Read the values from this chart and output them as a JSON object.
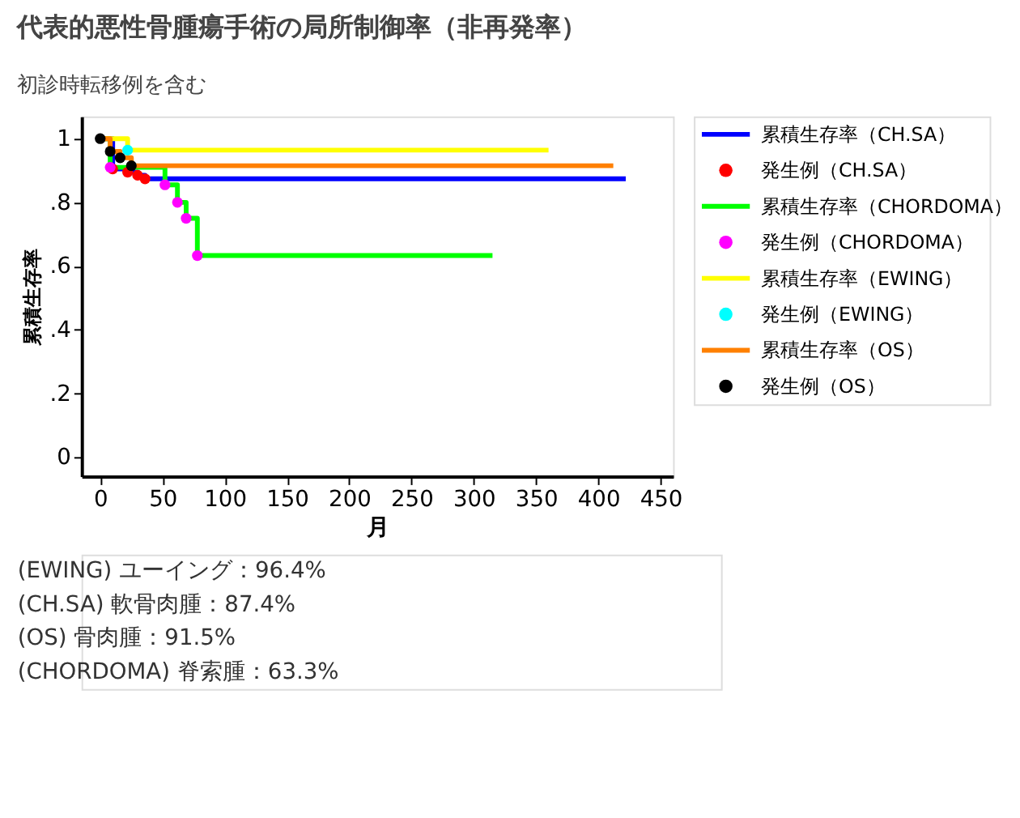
{
  "chart_data": {
    "type": "step",
    "title": "代表的悪性骨腫瘍手術の局所制御率（非再発率）",
    "subtitle": "初診時転移例を含む",
    "xlabel": "月",
    "ylabel": "累積生存率",
    "xlim": [
      -15,
      460
    ],
    "xticks": [
      0,
      50,
      100,
      150,
      200,
      250,
      300,
      350,
      400,
      450
    ],
    "ylim": [
      -0.06,
      1.07
    ],
    "yticks": [
      {
        "value": 0,
        "label": "0"
      },
      {
        "value": 0.2,
        "label": ".2"
      },
      {
        "value": 0.4,
        "label": ".4"
      },
      {
        "value": 0.6,
        "label": ".6"
      },
      {
        "value": 0.8,
        "label": ".8"
      },
      {
        "value": 1,
        "label": "1"
      }
    ],
    "grid": false,
    "legend": "right",
    "line_style": "solid",
    "series": [
      {
        "name": "累積生存率（CH.SA）",
        "color": "#0000ff",
        "x": [
          0,
          10,
          22,
          30,
          36,
          422
        ],
        "values": [
          1,
          0.905,
          0.895,
          0.885,
          0.874,
          0.874
        ]
      },
      {
        "type": "scatter",
        "marker": "circle",
        "name": "発生例（CH.SA）",
        "color": "#ff0000",
        "x": [
          10,
          22,
          30,
          36
        ],
        "values": [
          0.905,
          0.895,
          0.885,
          0.874
        ]
      },
      {
        "name": "累積生存率（CHORDOMA）",
        "color": "#00ff00",
        "x": [
          0,
          8,
          52,
          62,
          69,
          78,
          315
        ],
        "values": [
          1,
          0.91,
          0.855,
          0.8,
          0.75,
          0.633,
          0.633
        ]
      },
      {
        "type": "scatter",
        "marker": "circle",
        "name": "発生例（CHORDOMA）",
        "color": "#ff00ff",
        "x": [
          8,
          52,
          62,
          69,
          78
        ],
        "values": [
          0.91,
          0.855,
          0.8,
          0.75,
          0.633
        ]
      },
      {
        "name": "累積生存率（EWING）",
        "color": "#ffff00",
        "x": [
          0,
          22,
          360
        ],
        "values": [
          1,
          0.964,
          0.964
        ]
      },
      {
        "type": "scatter",
        "marker": "circle",
        "name": "発生例（EWING）",
        "color": "#00ffff",
        "x": [
          22
        ],
        "values": [
          0.964
        ]
      },
      {
        "name": "累積生存率（OS）",
        "color": "#ff8000",
        "x": [
          0,
          8,
          16,
          25,
          412
        ],
        "values": [
          1,
          0.96,
          0.94,
          0.915,
          0.915
        ]
      },
      {
        "type": "scatter",
        "marker": "circle",
        "name": "発生例（OS）",
        "color": "#000000",
        "x": [
          0,
          8,
          16,
          25
        ],
        "values": [
          1,
          0.96,
          0.94,
          0.915
        ]
      }
    ],
    "annotations": [
      "(EWING) ユーイング：96.4%",
      "(CH.SA) 軟骨肉腫：87.4%",
      "(OS) 骨肉腫：91.5%",
      "(CHORDOMA) 脊索腫：63.3%"
    ]
  }
}
